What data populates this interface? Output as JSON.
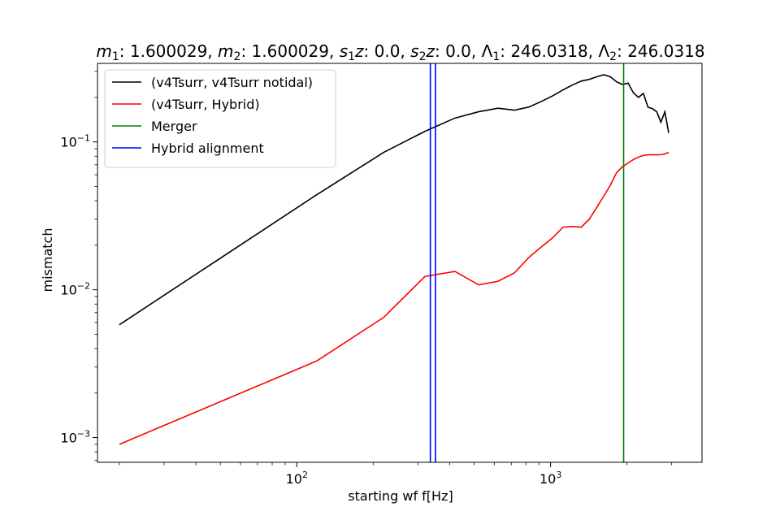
{
  "chart_data": {
    "type": "line",
    "title_parts": [
      {
        "t": "m",
        "i": true
      },
      {
        "t": "1",
        "sub": true
      },
      {
        "t": ": 1.600029, "
      },
      {
        "t": "m",
        "i": true
      },
      {
        "t": "2",
        "sub": true
      },
      {
        "t": ": 1.600029, "
      },
      {
        "t": "s",
        "i": true
      },
      {
        "t": "1",
        "sub": true
      },
      {
        "t": "z",
        "i": true
      },
      {
        "t": ": 0.0, "
      },
      {
        "t": "s",
        "i": true
      },
      {
        "t": "2",
        "sub": true
      },
      {
        "t": "z",
        "i": true
      },
      {
        "t": ": 0.0, "
      },
      {
        "t": "Λ"
      },
      {
        "t": "1",
        "sub": true
      },
      {
        "t": ": 246.0318, "
      },
      {
        "t": "Λ"
      },
      {
        "t": "2",
        "sub": true
      },
      {
        "t": ": 246.0318"
      }
    ],
    "xlabel": "starting wf f[Hz]",
    "ylabel": "mismatch",
    "xscale": "log",
    "yscale": "log",
    "xlim": [
      16.4,
      3950
    ],
    "ylim": [
      0.00068,
      0.34
    ],
    "x_major_ticks": [
      {
        "value": 100,
        "base": "10",
        "exp": "2"
      },
      {
        "value": 1000,
        "base": "10",
        "exp": "3"
      }
    ],
    "y_major_ticks": [
      {
        "value": 0.001,
        "base": "10",
        "exp": "−3"
      },
      {
        "value": 0.01,
        "base": "10",
        "exp": "−2"
      },
      {
        "value": 0.1,
        "base": "10",
        "exp": "−1"
      }
    ],
    "grid": false,
    "legend_position": "top-left",
    "series": [
      {
        "name": "(v4Tsurr, v4Tsurr notidal)",
        "color": "#000000",
        "points": [
          [
            20,
            0.0058
          ],
          [
            120,
            0.044
          ],
          [
            220,
            0.085
          ],
          [
            320,
            0.118
          ],
          [
            420,
            0.145
          ],
          [
            520,
            0.16
          ],
          [
            620,
            0.169
          ],
          [
            720,
            0.164
          ],
          [
            820,
            0.172
          ],
          [
            920,
            0.188
          ],
          [
            1020,
            0.205
          ],
          [
            1120,
            0.225
          ],
          [
            1220,
            0.243
          ],
          [
            1320,
            0.258
          ],
          [
            1420,
            0.265
          ],
          [
            1520,
            0.276
          ],
          [
            1620,
            0.285
          ],
          [
            1720,
            0.276
          ],
          [
            1820,
            0.255
          ],
          [
            1920,
            0.245
          ],
          [
            2020,
            0.25
          ],
          [
            2120,
            0.215
          ],
          [
            2220,
            0.2
          ],
          [
            2320,
            0.213
          ],
          [
            2420,
            0.172
          ],
          [
            2520,
            0.168
          ],
          [
            2620,
            0.16
          ],
          [
            2720,
            0.136
          ],
          [
            2820,
            0.16
          ],
          [
            2920,
            0.115
          ]
        ]
      },
      {
        "name": "(v4Tsurr, Hybrid)",
        "color": "#ff0000",
        "points": [
          [
            20,
            0.0009
          ],
          [
            120,
            0.0033
          ],
          [
            220,
            0.0065
          ],
          [
            320,
            0.0123
          ],
          [
            420,
            0.0133
          ],
          [
            520,
            0.0108
          ],
          [
            620,
            0.0114
          ],
          [
            720,
            0.013
          ],
          [
            820,
            0.0165
          ],
          [
            920,
            0.0195
          ],
          [
            1020,
            0.0225
          ],
          [
            1120,
            0.0265
          ],
          [
            1220,
            0.0268
          ],
          [
            1320,
            0.0265
          ],
          [
            1420,
            0.03
          ],
          [
            1520,
            0.036
          ],
          [
            1620,
            0.043
          ],
          [
            1720,
            0.051
          ],
          [
            1820,
            0.062
          ],
          [
            1920,
            0.068
          ],
          [
            2020,
            0.072
          ],
          [
            2120,
            0.076
          ],
          [
            2220,
            0.079
          ],
          [
            2320,
            0.081
          ],
          [
            2420,
            0.0818
          ],
          [
            2520,
            0.082
          ],
          [
            2620,
            0.0818
          ],
          [
            2720,
            0.082
          ],
          [
            2820,
            0.083
          ],
          [
            2920,
            0.085
          ]
        ]
      }
    ],
    "vlines": [
      {
        "name": "Merger",
        "color": "#008000",
        "x": [
          1940
        ]
      },
      {
        "name": "Hybrid alignment",
        "color": "#0000ff",
        "x": [
          336,
          352
        ]
      }
    ]
  }
}
